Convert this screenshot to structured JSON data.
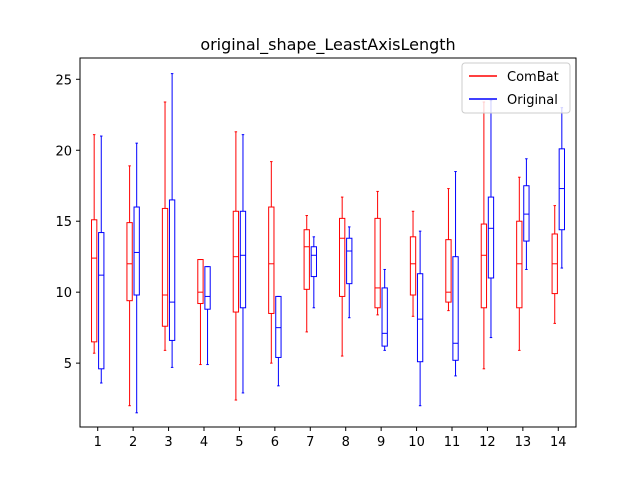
{
  "chart_data": {
    "type": "boxplot",
    "title": "original_shape_LeastAxisLength",
    "xlabel": "",
    "ylabel": "",
    "ylim": [
      0.5,
      26.5
    ],
    "yticks": [
      5,
      10,
      15,
      20,
      25
    ],
    "xlim": [
      0.5,
      14.5
    ],
    "categories": [
      "1",
      "2",
      "3",
      "4",
      "5",
      "6",
      "7",
      "8",
      "9",
      "10",
      "11",
      "12",
      "13",
      "14"
    ],
    "legend": {
      "placement": "top-right"
    },
    "grid": false,
    "series": [
      {
        "name": "ComBat",
        "color": "#ff0000",
        "boxes": [
          {
            "whislo": 5.7,
            "q1": 6.5,
            "med": 12.4,
            "q3": 15.1,
            "whishi": 21.1
          },
          {
            "whislo": 2.0,
            "q1": 9.4,
            "med": 12.0,
            "q3": 14.9,
            "whishi": 18.9
          },
          {
            "whislo": 5.9,
            "q1": 7.6,
            "med": 9.8,
            "q3": 15.9,
            "whishi": 23.4
          },
          {
            "whislo": 4.9,
            "q1": 9.2,
            "med": 10.0,
            "q3": 12.3,
            "whishi": 12.3
          },
          {
            "whislo": 2.4,
            "q1": 8.6,
            "med": 12.5,
            "q3": 15.7,
            "whishi": 21.3
          },
          {
            "whislo": 5.0,
            "q1": 8.5,
            "med": 12.0,
            "q3": 16.0,
            "whishi": 19.2
          },
          {
            "whislo": 7.2,
            "q1": 10.2,
            "med": 13.2,
            "q3": 14.4,
            "whishi": 15.4
          },
          {
            "whislo": 5.5,
            "q1": 9.7,
            "med": 13.8,
            "q3": 15.2,
            "whishi": 16.7
          },
          {
            "whislo": 8.4,
            "q1": 8.9,
            "med": 10.3,
            "q3": 15.2,
            "whishi": 17.1
          },
          {
            "whislo": 8.3,
            "q1": 9.8,
            "med": 12.0,
            "q3": 13.9,
            "whishi": 15.7
          },
          {
            "whislo": 8.7,
            "q1": 9.3,
            "med": 10.0,
            "q3": 13.7,
            "whishi": 17.3
          },
          {
            "whislo": 4.6,
            "q1": 8.9,
            "med": 12.6,
            "q3": 14.8,
            "whishi": 23.4
          },
          {
            "whislo": 5.9,
            "q1": 8.9,
            "med": 12.0,
            "q3": 15.0,
            "whishi": 18.1
          },
          {
            "whislo": 7.8,
            "q1": 9.9,
            "med": 12.0,
            "q3": 14.1,
            "whishi": 16.1
          }
        ]
      },
      {
        "name": "Original",
        "color": "#0000ff",
        "boxes": [
          {
            "whislo": 3.6,
            "q1": 4.6,
            "med": 11.2,
            "q3": 14.2,
            "whishi": 21.0
          },
          {
            "whislo": 1.5,
            "q1": 9.8,
            "med": 12.8,
            "q3": 16.0,
            "whishi": 20.5
          },
          {
            "whislo": 4.7,
            "q1": 6.6,
            "med": 9.3,
            "q3": 16.5,
            "whishi": 25.4
          },
          {
            "whislo": 4.9,
            "q1": 8.8,
            "med": 9.7,
            "q3": 11.8,
            "whishi": 11.8
          },
          {
            "whislo": 2.9,
            "q1": 8.9,
            "med": 12.6,
            "q3": 15.7,
            "whishi": 21.1
          },
          {
            "whislo": 3.4,
            "q1": 5.4,
            "med": 7.5,
            "q3": 9.7,
            "whishi": 9.7
          },
          {
            "whislo": 8.9,
            "q1": 11.1,
            "med": 12.6,
            "q3": 13.2,
            "whishi": 13.9
          },
          {
            "whislo": 8.2,
            "q1": 10.6,
            "med": 12.9,
            "q3": 13.8,
            "whishi": 14.6
          },
          {
            "whislo": 5.9,
            "q1": 6.2,
            "med": 7.1,
            "q3": 10.3,
            "whishi": 11.6
          },
          {
            "whislo": 2.0,
            "q1": 5.1,
            "med": 8.1,
            "q3": 11.3,
            "whishi": 14.3
          },
          {
            "whislo": 4.1,
            "q1": 5.2,
            "med": 6.4,
            "q3": 12.5,
            "whishi": 18.5
          },
          {
            "whislo": 6.8,
            "q1": 11.0,
            "med": 14.5,
            "q3": 16.7,
            "whishi": 23.5
          },
          {
            "whislo": 11.6,
            "q1": 13.6,
            "med": 15.5,
            "q3": 17.5,
            "whishi": 19.4
          },
          {
            "whislo": 11.7,
            "q1": 14.4,
            "med": 17.3,
            "q3": 20.1,
            "whishi": 23.0
          }
        ]
      }
    ]
  }
}
